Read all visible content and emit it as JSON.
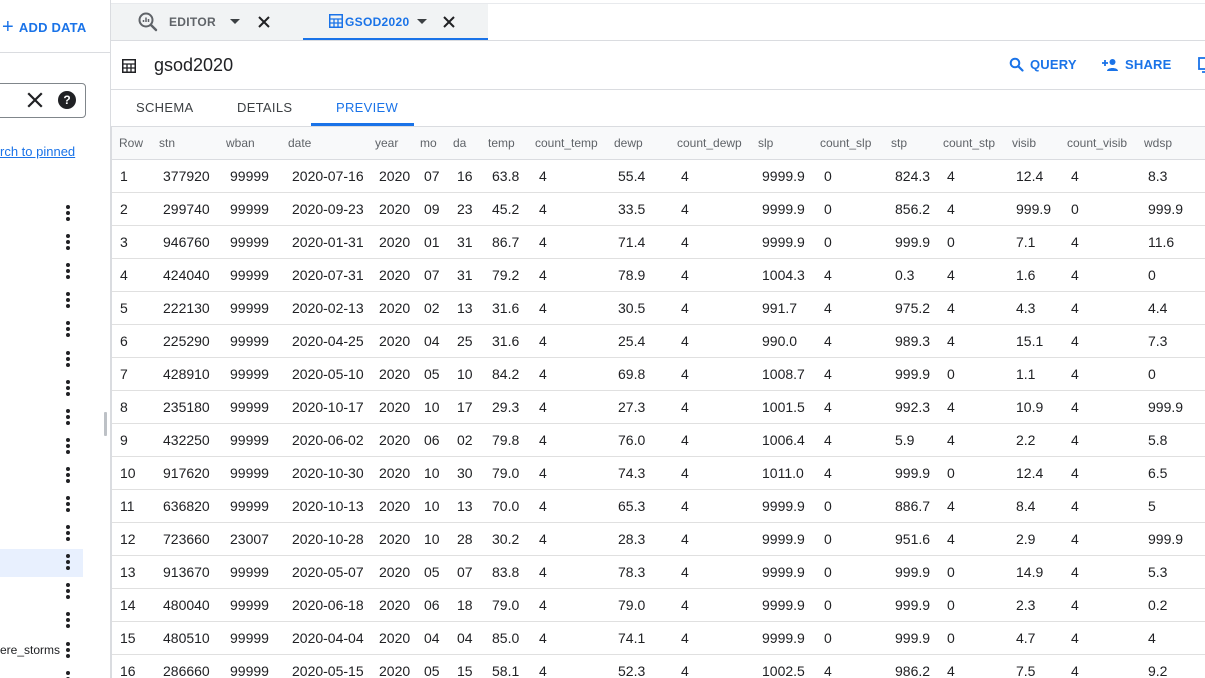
{
  "sidebar": {
    "add_data_label": "ADD DATA",
    "search_help_label": "?",
    "search_pinned_link": "rch to pinned",
    "tree_rows": [
      {
        "label": ""
      },
      {
        "label": ""
      },
      {
        "label": ""
      },
      {
        "label": ""
      },
      {
        "label": ""
      },
      {
        "label": ""
      },
      {
        "label": ""
      },
      {
        "label": ""
      },
      {
        "label": ""
      },
      {
        "label": ""
      },
      {
        "label": ""
      },
      {
        "label": ""
      },
      {
        "label": ""
      },
      {
        "label": ""
      },
      {
        "label": ""
      },
      {
        "label": "ere_storms"
      },
      {
        "label": ""
      }
    ],
    "selected_row_index": 12
  },
  "tabs": {
    "editor_label": "EDITOR",
    "table_tab_label": "GSOD2020"
  },
  "header": {
    "title": "gsod2020",
    "query_label": "QUERY",
    "share_label": "SHARE"
  },
  "subtabs": {
    "schema": "SCHEMA",
    "details": "DETAILS",
    "preview": "PREVIEW",
    "active": "preview"
  },
  "colors": {
    "accent": "#1a73e8",
    "selected_bg": "#e8f0fe",
    "border": "#dadce0"
  },
  "table": {
    "columns": [
      "Row",
      "stn",
      "wban",
      "date",
      "year",
      "mo",
      "da",
      "temp",
      "count_temp",
      "dewp",
      "count_dewp",
      "slp",
      "count_slp",
      "stp",
      "count_stp",
      "visib",
      "count_visib",
      "wdsp"
    ],
    "rows": [
      [
        "1",
        "377920",
        "99999",
        "2020-07-16",
        "2020",
        "07",
        "16",
        "63.8",
        "4",
        "55.4",
        "4",
        "9999.9",
        "0",
        "824.3",
        "4",
        "12.4",
        "4",
        "8.3"
      ],
      [
        "2",
        "299740",
        "99999",
        "2020-09-23",
        "2020",
        "09",
        "23",
        "45.2",
        "4",
        "33.5",
        "4",
        "9999.9",
        "0",
        "856.2",
        "4",
        "999.9",
        "0",
        "999.9"
      ],
      [
        "3",
        "946760",
        "99999",
        "2020-01-31",
        "2020",
        "01",
        "31",
        "86.7",
        "4",
        "71.4",
        "4",
        "9999.9",
        "0",
        "999.9",
        "0",
        "7.1",
        "4",
        "11.6"
      ],
      [
        "4",
        "424040",
        "99999",
        "2020-07-31",
        "2020",
        "07",
        "31",
        "79.2",
        "4",
        "78.9",
        "4",
        "1004.3",
        "4",
        "0.3",
        "4",
        "1.6",
        "4",
        "0"
      ],
      [
        "5",
        "222130",
        "99999",
        "2020-02-13",
        "2020",
        "02",
        "13",
        "31.6",
        "4",
        "30.5",
        "4",
        "991.7",
        "4",
        "975.2",
        "4",
        "4.3",
        "4",
        "4.4"
      ],
      [
        "6",
        "225290",
        "99999",
        "2020-04-25",
        "2020",
        "04",
        "25",
        "31.6",
        "4",
        "25.4",
        "4",
        "990.0",
        "4",
        "989.3",
        "4",
        "15.1",
        "4",
        "7.3"
      ],
      [
        "7",
        "428910",
        "99999",
        "2020-05-10",
        "2020",
        "05",
        "10",
        "84.2",
        "4",
        "69.8",
        "4",
        "1008.7",
        "4",
        "999.9",
        "0",
        "1.1",
        "4",
        "0"
      ],
      [
        "8",
        "235180",
        "99999",
        "2020-10-17",
        "2020",
        "10",
        "17",
        "29.3",
        "4",
        "27.3",
        "4",
        "1001.5",
        "4",
        "992.3",
        "4",
        "10.9",
        "4",
        "999.9"
      ],
      [
        "9",
        "432250",
        "99999",
        "2020-06-02",
        "2020",
        "06",
        "02",
        "79.8",
        "4",
        "76.0",
        "4",
        "1006.4",
        "4",
        "5.9",
        "4",
        "2.2",
        "4",
        "5.8"
      ],
      [
        "10",
        "917620",
        "99999",
        "2020-10-30",
        "2020",
        "10",
        "30",
        "79.0",
        "4",
        "74.3",
        "4",
        "1011.0",
        "4",
        "999.9",
        "0",
        "12.4",
        "4",
        "6.5"
      ],
      [
        "11",
        "636820",
        "99999",
        "2020-10-13",
        "2020",
        "10",
        "13",
        "70.0",
        "4",
        "65.3",
        "4",
        "9999.9",
        "0",
        "886.7",
        "4",
        "8.4",
        "4",
        "5"
      ],
      [
        "12",
        "723660",
        "23007",
        "2020-10-28",
        "2020",
        "10",
        "28",
        "30.2",
        "4",
        "28.3",
        "4",
        "9999.9",
        "0",
        "951.6",
        "4",
        "2.9",
        "4",
        "999.9"
      ],
      [
        "13",
        "913670",
        "99999",
        "2020-05-07",
        "2020",
        "05",
        "07",
        "83.8",
        "4",
        "78.3",
        "4",
        "9999.9",
        "0",
        "999.9",
        "0",
        "14.9",
        "4",
        "5.3"
      ],
      [
        "14",
        "480040",
        "99999",
        "2020-06-18",
        "2020",
        "06",
        "18",
        "79.0",
        "4",
        "79.0",
        "4",
        "9999.9",
        "0",
        "999.9",
        "0",
        "2.3",
        "4",
        "0.2"
      ],
      [
        "15",
        "480510",
        "99999",
        "2020-04-04",
        "2020",
        "04",
        "04",
        "85.0",
        "4",
        "74.1",
        "4",
        "9999.9",
        "0",
        "999.9",
        "0",
        "4.7",
        "4",
        "4"
      ],
      [
        "16",
        "286660",
        "99999",
        "2020-05-15",
        "2020",
        "05",
        "15",
        "58.1",
        "4",
        "52.3",
        "4",
        "1002.5",
        "4",
        "986.2",
        "4",
        "7.5",
        "4",
        "9.2"
      ]
    ]
  }
}
